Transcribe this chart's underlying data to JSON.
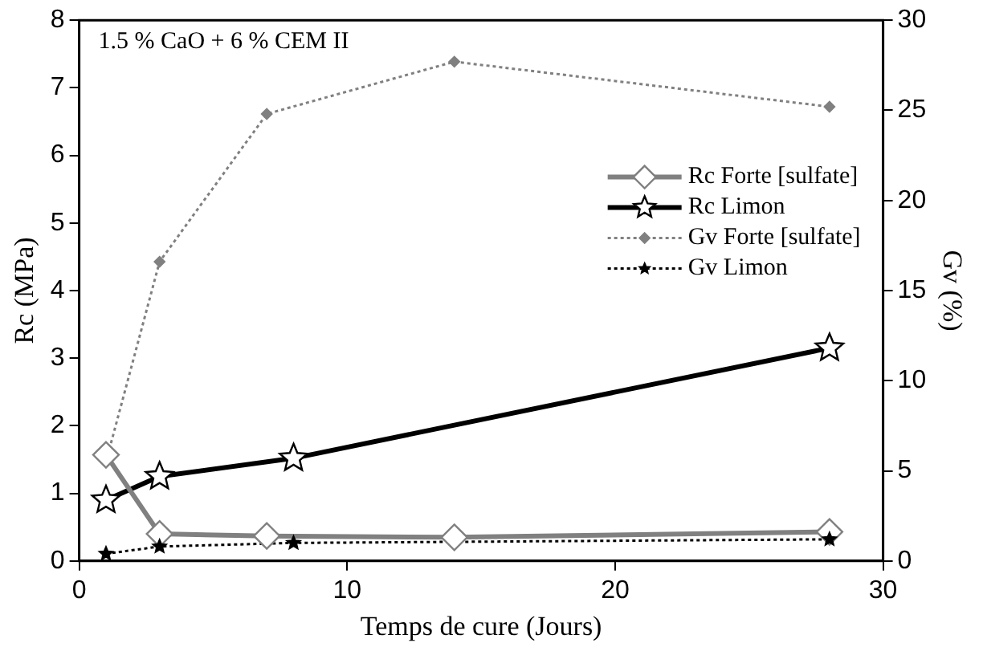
{
  "chart_data": {
    "type": "line",
    "xlabel": "Temps de cure (Jours)",
    "ylabel": "Rc (MPa)",
    "y2label": "Gv (%)",
    "annotations": [
      "1.5 % CaO + 6 % CEM II"
    ],
    "xlim": [
      0,
      30
    ],
    "xticks": [
      0,
      10,
      20,
      30
    ],
    "ylim": [
      0,
      8
    ],
    "yticks": [
      0,
      1,
      2,
      3,
      4,
      5,
      6,
      7,
      8
    ],
    "y2lim": [
      0,
      30
    ],
    "y2ticks": [
      0,
      5,
      10,
      15,
      20,
      25,
      30
    ],
    "grid": false,
    "legend": "right",
    "series": [
      {
        "name": "Rc Forte [sulfate]",
        "color": "#808080",
        "x": [
          1,
          3,
          7,
          14,
          28
        ],
        "values": [
          1.57,
          0.4,
          0.37,
          0.35,
          0.43
        ],
        "marker": "diamond",
        "line_style": "solid"
      },
      {
        "name": "Rc Limon",
        "color": "#000000",
        "x": [
          1,
          3,
          8,
          28
        ],
        "values": [
          0.9,
          1.25,
          1.52,
          3.15
        ],
        "marker": "star",
        "line_style": "solid"
      },
      {
        "name": "Gv Forte [sulfate]",
        "color": "#808080",
        "x": [
          1,
          3,
          7,
          14,
          28
        ],
        "values": [
          5.5,
          16.6,
          24.8,
          27.7,
          25.2
        ],
        "marker": "diamond",
        "line_style": "dotted",
        "axis": "y2"
      },
      {
        "name": "Gv Limon",
        "color": "#000000",
        "x": [
          1,
          3,
          8,
          28
        ],
        "values": [
          0.4,
          0.8,
          1.0,
          1.2
        ],
        "marker": "star",
        "line_style": "dotted",
        "axis": "y2"
      }
    ]
  }
}
